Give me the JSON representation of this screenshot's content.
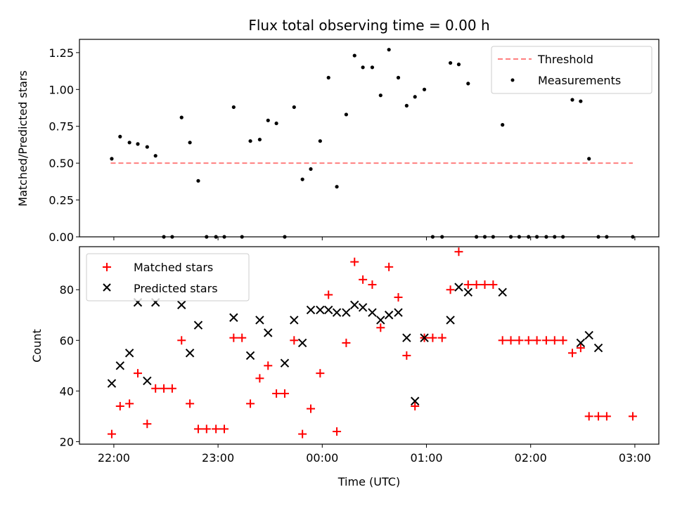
{
  "chart_data": [
    {
      "type": "scatter",
      "title": "Flux total observing time = 0.00 h",
      "ylabel": "Matched/Predicted stars",
      "ylim": [
        0,
        1.34
      ],
      "yticks": [
        "0.00",
        "0.25",
        "0.50",
        "0.75",
        "1.00",
        "1.25"
      ],
      "xlim_hours": [
        -0.33,
        5.23
      ],
      "legend": {
        "placement": "top-right",
        "entries": [
          "Threshold",
          "Measurements"
        ]
      },
      "series": [
        {
          "name": "Threshold",
          "kind": "dashed-line",
          "color": "#ff7f7f",
          "x": [
            -0.03,
            4.98
          ],
          "y": [
            0.5,
            0.5
          ]
        },
        {
          "name": "Measurements",
          "kind": "dots",
          "color": "#000000",
          "x": [
            -0.02,
            0.06,
            0.15,
            0.23,
            0.32,
            0.4,
            0.48,
            0.56,
            0.65,
            0.73,
            0.81,
            0.89,
            0.98,
            1.06,
            1.15,
            1.23,
            1.31,
            1.4,
            1.48,
            1.56,
            1.64,
            1.73,
            1.81,
            1.89,
            1.98,
            2.06,
            2.14,
            2.23,
            2.31,
            2.39,
            2.48,
            2.56,
            2.64,
            2.73,
            2.81,
            2.89,
            2.98,
            3.06,
            3.15,
            3.23,
            3.31,
            3.4,
            3.48,
            3.56,
            3.64,
            3.73,
            3.81,
            3.89,
            3.98,
            4.06,
            4.15,
            4.23,
            4.31,
            4.4,
            4.48,
            4.56,
            4.65,
            4.73,
            4.98
          ],
          "y": [
            0.53,
            0.68,
            0.64,
            0.63,
            0.61,
            0.55,
            0.0,
            0.0,
            0.81,
            0.64,
            0.38,
            0.0,
            0.0,
            0.0,
            0.88,
            0.0,
            0.65,
            0.66,
            0.79,
            0.77,
            0.0,
            0.88,
            0.39,
            0.46,
            0.65,
            1.08,
            0.34,
            0.83,
            1.23,
            1.15,
            1.15,
            0.96,
            1.27,
            1.08,
            0.89,
            0.95,
            1.0,
            0.0,
            0.0,
            1.18,
            1.17,
            1.04,
            0.0,
            0.0,
            0.0,
            0.76,
            0.0,
            0.0,
            0.0,
            0.0,
            0.0,
            0.0,
            0.0,
            0.93,
            0.92,
            0.53,
            0.0,
            0.0,
            0.0
          ]
        }
      ]
    },
    {
      "type": "scatter",
      "xlabel": "Time (UTC)",
      "ylabel": "Count",
      "ylim": [
        19,
        97
      ],
      "yticks": [
        "20",
        "40",
        "60",
        "80"
      ],
      "xlim_hours": [
        -0.33,
        5.23
      ],
      "xticks": [
        {
          "hours": 0,
          "label": "22:00"
        },
        {
          "hours": 1,
          "label": "23:00"
        },
        {
          "hours": 2,
          "label": "00:00"
        },
        {
          "hours": 3,
          "label": "01:00"
        },
        {
          "hours": 4,
          "label": "02:00"
        },
        {
          "hours": 5,
          "label": "03:00"
        }
      ],
      "legend": {
        "placement": "top-left",
        "entries": [
          "Matched stars",
          "Predicted stars"
        ]
      },
      "series": [
        {
          "name": "Matched stars",
          "marker": "+",
          "color": "#ff0000",
          "x": [
            -0.02,
            0.06,
            0.15,
            0.23,
            0.32,
            0.4,
            0.48,
            0.56,
            0.65,
            0.73,
            0.81,
            0.89,
            0.98,
            1.06,
            1.15,
            1.23,
            1.31,
            1.4,
            1.48,
            1.56,
            1.64,
            1.73,
            1.81,
            1.89,
            1.98,
            2.06,
            2.14,
            2.23,
            2.31,
            2.39,
            2.48,
            2.56,
            2.64,
            2.73,
            2.81,
            2.89,
            2.98,
            3.06,
            3.15,
            3.23,
            3.31,
            3.4,
            3.48,
            3.56,
            3.64,
            3.73,
            3.81,
            3.89,
            3.98,
            4.06,
            4.15,
            4.23,
            4.31,
            4.4,
            4.48,
            4.56,
            4.65,
            4.73,
            4.98
          ],
          "y": [
            23,
            34,
            35,
            47,
            27,
            41,
            41,
            41,
            60,
            35,
            25,
            25,
            25,
            25,
            61,
            61,
            35,
            45,
            50,
            39,
            39,
            60,
            23,
            33,
            47,
            78,
            24,
            59,
            91,
            84,
            82,
            65,
            89,
            77,
            54,
            34,
            61,
            61,
            61,
            80,
            95,
            82,
            82,
            82,
            82,
            60,
            60,
            60,
            60,
            60,
            60,
            60,
            60,
            55,
            57,
            30,
            30,
            30,
            30
          ]
        },
        {
          "name": "Predicted stars",
          "marker": "x",
          "color": "#000000",
          "x": [
            -0.02,
            0.06,
            0.15,
            0.23,
            0.32,
            0.4,
            0.65,
            0.73,
            0.81,
            1.15,
            1.31,
            1.4,
            1.48,
            1.64,
            1.73,
            1.81,
            1.89,
            1.98,
            2.06,
            2.14,
            2.23,
            2.31,
            2.39,
            2.48,
            2.56,
            2.64,
            2.73,
            2.81,
            2.89,
            2.98,
            3.23,
            3.31,
            3.4,
            3.73,
            4.48,
            4.56,
            4.65
          ],
          "y": [
            43,
            50,
            55,
            75,
            44,
            75,
            74,
            55,
            66,
            69,
            54,
            68,
            63,
            51,
            68,
            59,
            72,
            72,
            72,
            71,
            71,
            74,
            73,
            71,
            68,
            70,
            71,
            61,
            36,
            61,
            68,
            81,
            79,
            79,
            59,
            62,
            57
          ]
        }
      ]
    }
  ]
}
